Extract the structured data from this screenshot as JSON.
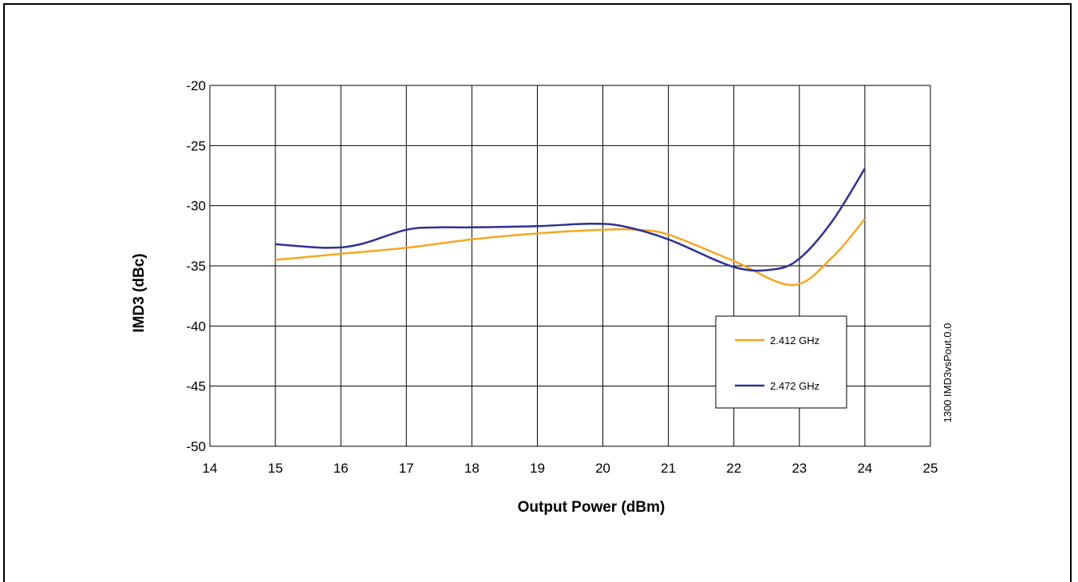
{
  "chart_data": {
    "type": "line",
    "xlabel": "Output Power (dBm)",
    "ylabel": "IMD3 (dBc)",
    "xlim": [
      14,
      25
    ],
    "ylim": [
      -50,
      -20
    ],
    "xticks": [
      14,
      15,
      16,
      17,
      18,
      19,
      20,
      21,
      22,
      23,
      24,
      25
    ],
    "yticks": [
      -20,
      -25,
      -30,
      -35,
      -40,
      -45,
      -50
    ],
    "grid": true,
    "legend_position": "right",
    "side_note": "1300 IMD3vsPout.0.0",
    "series": [
      {
        "name": "2.412 GHz",
        "color": "#f5a623",
        "x": [
          15,
          16,
          17,
          18,
          19,
          20,
          20.5,
          21,
          22,
          22.9,
          23.5,
          24
        ],
        "y": [
          -34.5,
          -34.0,
          -33.5,
          -32.8,
          -32.3,
          -32.0,
          -32.0,
          -32.4,
          -34.6,
          -36.6,
          -34.3,
          -31.1
        ]
      },
      {
        "name": "2.472 GHz",
        "color": "#2e3192",
        "x": [
          15,
          15.8,
          16.3,
          17,
          17.5,
          18,
          19,
          19.8,
          20.3,
          21,
          22,
          22.6,
          23,
          23.5,
          24
        ],
        "y": [
          -33.2,
          -33.5,
          -33.2,
          -32.0,
          -31.8,
          -31.8,
          -31.7,
          -31.5,
          -31.7,
          -32.8,
          -35.1,
          -35.3,
          -34.4,
          -31.3,
          -26.9
        ]
      }
    ]
  }
}
